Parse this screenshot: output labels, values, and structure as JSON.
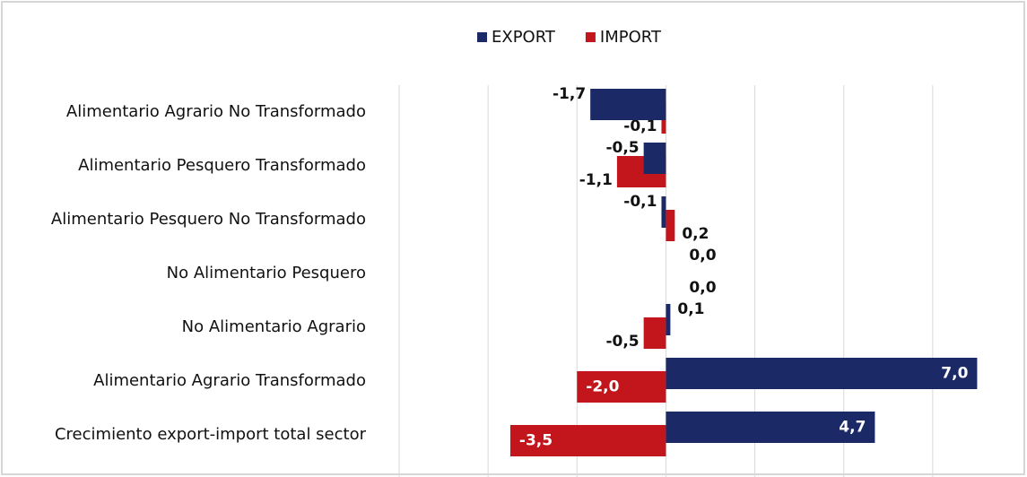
{
  "chart_data": {
    "type": "hbar",
    "categories": [
      "Alimentario Agrario No Transformado",
      "Alimentario Pesquero Transformado",
      "Alimentario Pesquero No Transformado",
      "No Alimentario Pesquero",
      "No Alimentario Agrario",
      "Alimentario Agrario Transformado",
      "Crecimiento export-import total sector"
    ],
    "series": [
      {
        "name": "EXPORT",
        "color": "#1b2a66",
        "values": [
          -1.7,
          -0.5,
          -0.1,
          0.0,
          0.1,
          7.0,
          4.7
        ],
        "value_labels": [
          "-1,7",
          "-0,5",
          "-0,1",
          "0,0",
          "0,1",
          "7,0",
          "4,7"
        ]
      },
      {
        "name": "IMPORT",
        "color": "#c3151c",
        "values": [
          -0.1,
          -1.1,
          0.2,
          0.0,
          -0.5,
          -2.0,
          -3.5
        ],
        "value_labels": [
          "-0,1",
          "-1,1",
          "0,2",
          "0,0",
          "-0,5",
          "-2,0",
          "-3,5"
        ]
      }
    ],
    "xlim": [
      -6,
      8
    ],
    "xticks": [
      -6,
      -4,
      -2,
      0,
      2,
      4,
      6
    ],
    "grid": true,
    "legend": "top"
  }
}
